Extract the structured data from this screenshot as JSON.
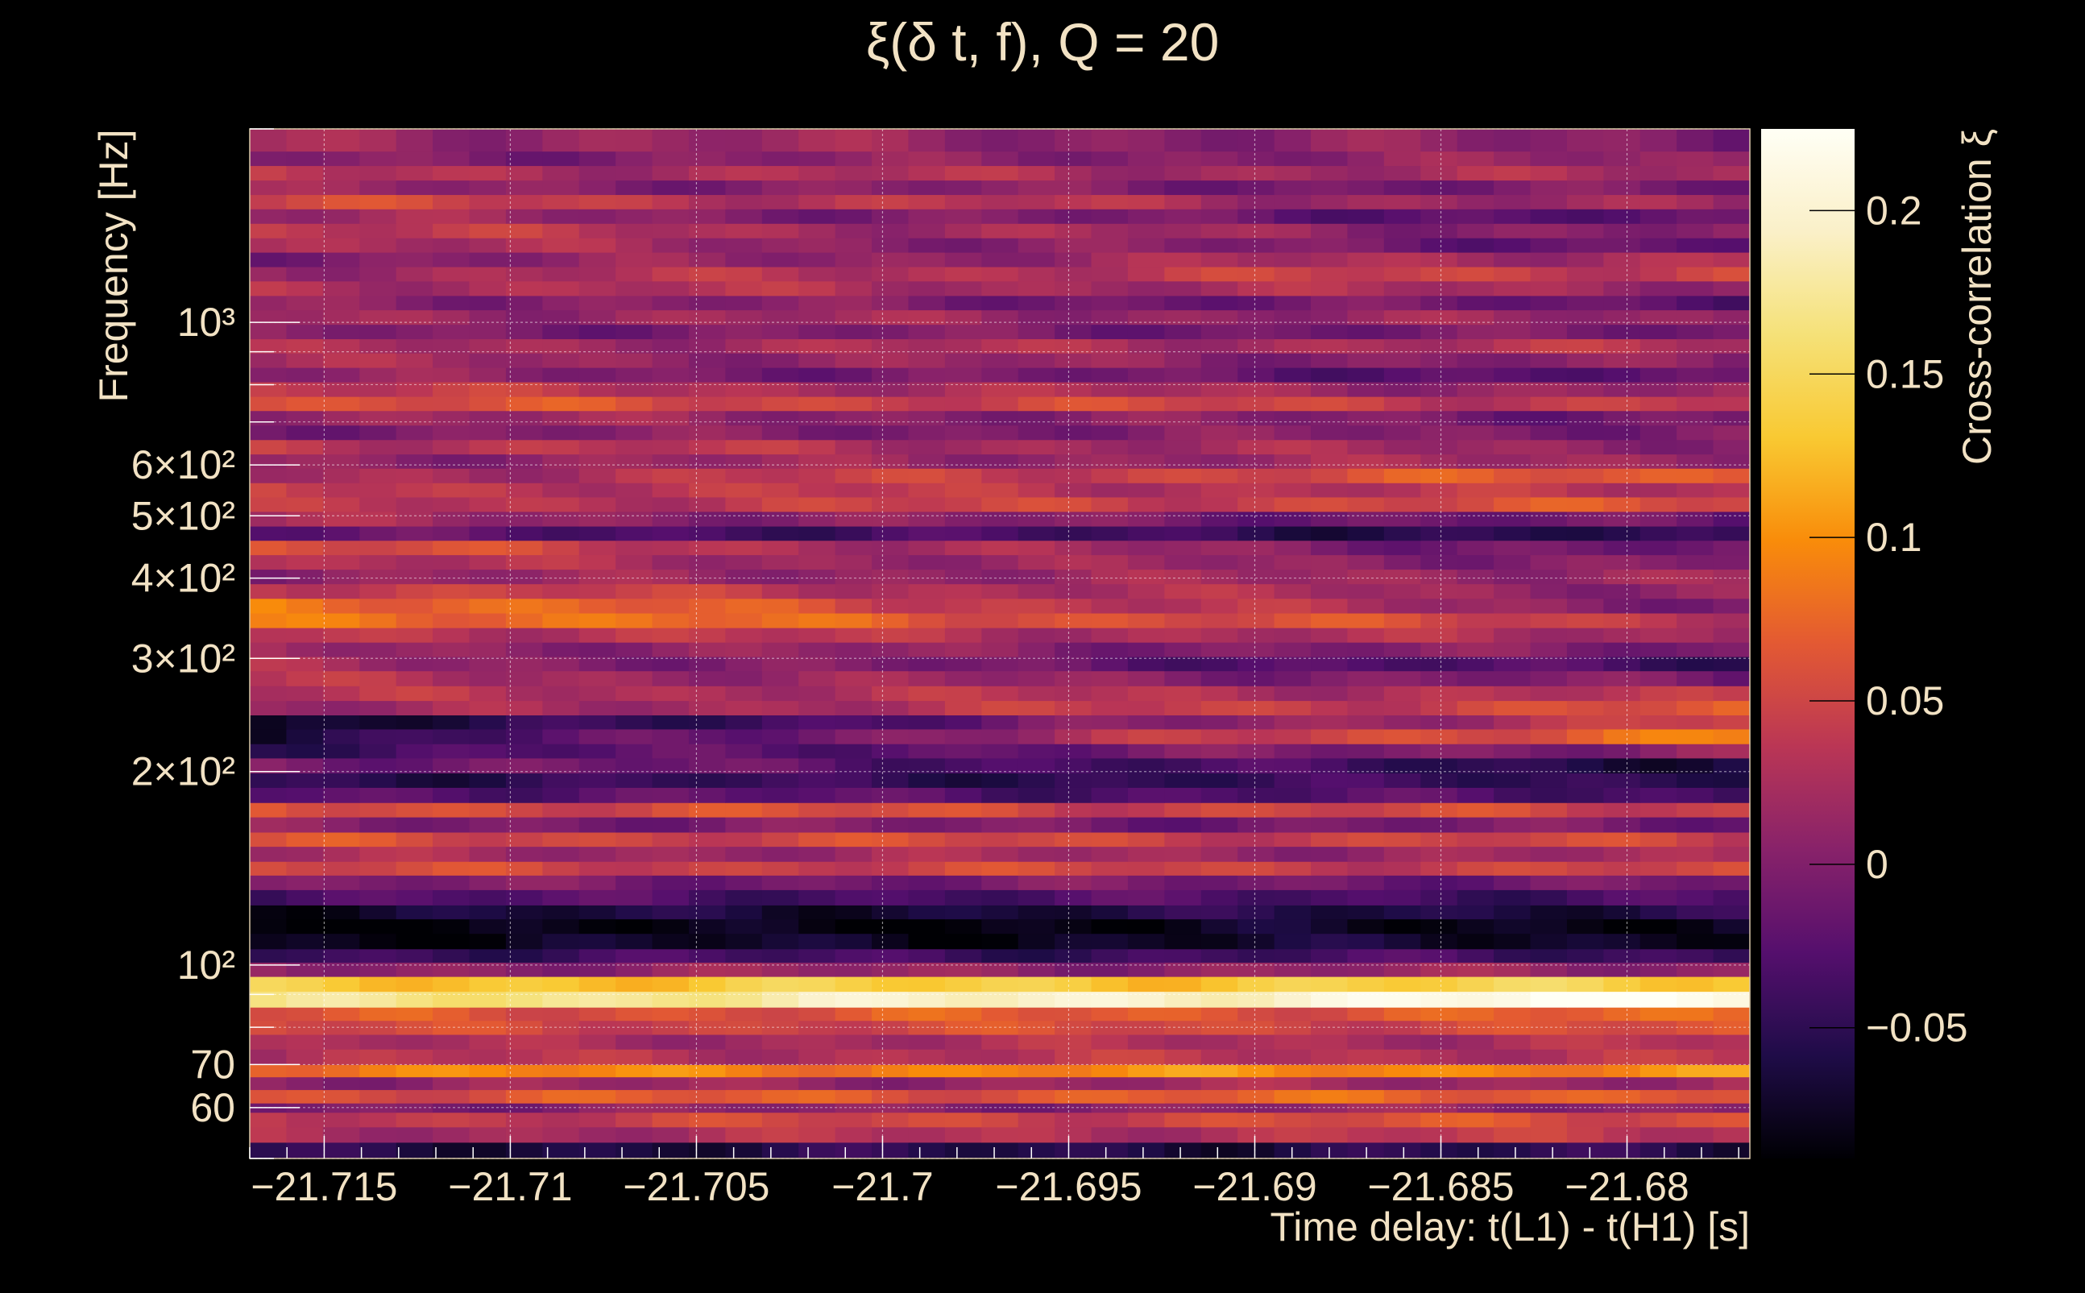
{
  "chart_data": {
    "type": "heatmap",
    "title": "ξ(δ t, f), Q = 20",
    "xlabel": "Time delay: t(L1) - t(H1) [s]",
    "ylabel": "Frequency [Hz]",
    "colorbar_label": "Cross-correlation ξ",
    "x_range": [
      -21.717,
      -21.6767
    ],
    "y_range": [
      50,
      2000
    ],
    "y_scale": "log",
    "color_range": [
      -0.09,
      0.225
    ],
    "colormap": "inferno",
    "grid": true,
    "x_ticks": [
      {
        "value": -21.715,
        "label": "−21.715"
      },
      {
        "value": -21.71,
        "label": "−21.71"
      },
      {
        "value": -21.705,
        "label": "−21.705"
      },
      {
        "value": -21.7,
        "label": "−21.7"
      },
      {
        "value": -21.695,
        "label": "−21.695"
      },
      {
        "value": -21.69,
        "label": "−21.69"
      },
      {
        "value": -21.685,
        "label": "−21.685"
      },
      {
        "value": -21.68,
        "label": "−21.68"
      }
    ],
    "y_ticks": [
      {
        "value": 1000,
        "label": "10³"
      },
      {
        "value": 600,
        "label": "6×10²"
      },
      {
        "value": 500,
        "label": "5×10²"
      },
      {
        "value": 400,
        "label": "4×10²"
      },
      {
        "value": 300,
        "label": "3×10²"
      },
      {
        "value": 200,
        "label": "2×10²"
      },
      {
        "value": 100,
        "label": "10²"
      },
      {
        "value": 70,
        "label": "70"
      },
      {
        "value": 60,
        "label": "60"
      }
    ],
    "color_ticks": [
      {
        "value": 0.2,
        "label": "0.2"
      },
      {
        "value": 0.15,
        "label": "0.15"
      },
      {
        "value": 0.1,
        "label": "0.1"
      },
      {
        "value": 0.05,
        "label": "0.05"
      },
      {
        "value": 0,
        "label": "0"
      },
      {
        "value": -0.05,
        "label": "−0.05"
      }
    ],
    "frequency_bands": [
      {
        "f_low": 50,
        "f_high": 53,
        "v_start": -0.06,
        "v_end": -0.055
      },
      {
        "f_low": 53,
        "f_high": 56,
        "v_start": 0.02,
        "v_end": 0.04
      },
      {
        "f_low": 56,
        "f_high": 59,
        "v_start": 0.04,
        "v_end": 0.06
      },
      {
        "f_low": 59,
        "f_high": 61,
        "v_start": 0.0,
        "v_end": 0.01
      },
      {
        "f_low": 61,
        "f_high": 64,
        "v_start": 0.06,
        "v_end": 0.075
      },
      {
        "f_low": 64,
        "f_high": 67,
        "v_start": 0.01,
        "v_end": 0.02
      },
      {
        "f_low": 67,
        "f_high": 70,
        "v_start": 0.09,
        "v_end": 0.1
      },
      {
        "f_low": 70,
        "f_high": 74,
        "v_start": 0.03,
        "v_end": 0.035
      },
      {
        "f_low": 74,
        "f_high": 78,
        "v_start": 0.02,
        "v_end": 0.03
      },
      {
        "f_low": 78,
        "f_high": 82,
        "v_start": 0.05,
        "v_end": 0.055
      },
      {
        "f_low": 82,
        "f_high": 86,
        "v_start": 0.06,
        "v_end": 0.07
      },
      {
        "f_low": 86,
        "f_high": 91,
        "v_start": 0.16,
        "v_end": 0.225
      },
      {
        "f_low": 91,
        "f_high": 96,
        "v_start": 0.13,
        "v_end": 0.14
      },
      {
        "f_low": 96,
        "f_high": 101,
        "v_start": 0.01,
        "v_end": 0.01
      },
      {
        "f_low": 101,
        "f_high": 106,
        "v_start": -0.04,
        "v_end": -0.04
      },
      {
        "f_low": 106,
        "f_high": 112,
        "v_start": -0.08,
        "v_end": -0.07
      },
      {
        "f_low": 112,
        "f_high": 118,
        "v_start": -0.09,
        "v_end": -0.075
      },
      {
        "f_low": 118,
        "f_high": 124,
        "v_start": -0.07,
        "v_end": -0.055
      },
      {
        "f_low": 124,
        "f_high": 131,
        "v_start": -0.03,
        "v_end": -0.035
      },
      {
        "f_low": 131,
        "f_high": 138,
        "v_start": -0.005,
        "v_end": -0.01
      },
      {
        "f_low": 138,
        "f_high": 145,
        "v_start": 0.05,
        "v_end": 0.045
      },
      {
        "f_low": 145,
        "f_high": 153,
        "v_start": 0.02,
        "v_end": 0.015
      },
      {
        "f_low": 153,
        "f_high": 161,
        "v_start": 0.055,
        "v_end": 0.045
      },
      {
        "f_low": 161,
        "f_high": 170,
        "v_start": 0.0,
        "v_end": -0.01
      },
      {
        "f_low": 170,
        "f_high": 179,
        "v_start": 0.06,
        "v_end": 0.045
      },
      {
        "f_low": 179,
        "f_high": 189,
        "v_start": -0.02,
        "v_end": -0.035
      },
      {
        "f_low": 189,
        "f_high": 199,
        "v_start": -0.05,
        "v_end": -0.045
      },
      {
        "f_low": 199,
        "f_high": 210,
        "v_start": 0.0,
        "v_end": -0.06
      },
      {
        "f_low": 210,
        "f_high": 221,
        "v_start": -0.04,
        "v_end": 0.01
      },
      {
        "f_low": 221,
        "f_high": 233,
        "v_start": -0.06,
        "v_end": 0.09
      },
      {
        "f_low": 233,
        "f_high": 245,
        "v_start": -0.08,
        "v_end": 0.05
      },
      {
        "f_low": 245,
        "f_high": 258,
        "v_start": 0.01,
        "v_end": 0.06
      },
      {
        "f_low": 258,
        "f_high": 272,
        "v_start": 0.03,
        "v_end": 0.03
      },
      {
        "f_low": 272,
        "f_high": 287,
        "v_start": 0.03,
        "v_end": -0.01
      },
      {
        "f_low": 287,
        "f_high": 302,
        "v_start": 0.02,
        "v_end": -0.045
      },
      {
        "f_low": 302,
        "f_high": 318,
        "v_start": 0.015,
        "v_end": -0.005
      },
      {
        "f_low": 318,
        "f_high": 335,
        "v_start": 0.04,
        "v_end": 0.02
      },
      {
        "f_low": 335,
        "f_high": 353,
        "v_start": 0.09,
        "v_end": 0.04
      },
      {
        "f_low": 353,
        "f_high": 372,
        "v_start": 0.09,
        "v_end": 0.0
      },
      {
        "f_low": 372,
        "f_high": 392,
        "v_start": 0.05,
        "v_end": 0.01
      },
      {
        "f_low": 392,
        "f_high": 413,
        "v_start": 0.01,
        "v_end": 0.02
      },
      {
        "f_low": 413,
        "f_high": 435,
        "v_start": 0.03,
        "v_end": 0.0
      },
      {
        "f_low": 435,
        "f_high": 458,
        "v_start": 0.06,
        "v_end": -0.02
      },
      {
        "f_low": 458,
        "f_high": 482,
        "v_start": -0.02,
        "v_end": -0.06
      },
      {
        "f_low": 482,
        "f_high": 508,
        "v_start": 0.02,
        "v_end": -0.02
      },
      {
        "f_low": 508,
        "f_high": 535,
        "v_start": 0.03,
        "v_end": 0.06
      },
      {
        "f_low": 535,
        "f_high": 563,
        "v_start": 0.04,
        "v_end": 0.03
      },
      {
        "f_low": 563,
        "f_high": 593,
        "v_start": 0.02,
        "v_end": 0.07
      },
      {
        "f_low": 593,
        "f_high": 624,
        "v_start": 0.01,
        "v_end": 0.02
      },
      {
        "f_low": 624,
        "f_high": 657,
        "v_start": 0.04,
        "v_end": 0.01
      },
      {
        "f_low": 657,
        "f_high": 692,
        "v_start": 0.0,
        "v_end": 0.0
      },
      {
        "f_low": 692,
        "f_high": 729,
        "v_start": 0.02,
        "v_end": -0.01
      },
      {
        "f_low": 729,
        "f_high": 767,
        "v_start": 0.06,
        "v_end": 0.04
      },
      {
        "f_low": 767,
        "f_high": 808,
        "v_start": 0.04,
        "v_end": 0.01
      },
      {
        "f_low": 808,
        "f_high": 851,
        "v_start": 0.01,
        "v_end": -0.03
      },
      {
        "f_low": 851,
        "f_high": 896,
        "v_start": 0.02,
        "v_end": 0.0
      },
      {
        "f_low": 896,
        "f_high": 943,
        "v_start": 0.02,
        "v_end": 0.03
      },
      {
        "f_low": 943,
        "f_high": 993,
        "v_start": 0.0,
        "v_end": -0.01
      },
      {
        "f_low": 993,
        "f_high": 1046,
        "v_start": 0.02,
        "v_end": 0.01
      },
      {
        "f_low": 1046,
        "f_high": 1101,
        "v_start": 0.01,
        "v_end": -0.02
      },
      {
        "f_low": 1101,
        "f_high": 1160,
        "v_start": 0.03,
        "v_end": 0.02
      },
      {
        "f_low": 1160,
        "f_high": 1221,
        "v_start": 0.02,
        "v_end": 0.05
      },
      {
        "f_low": 1221,
        "f_high": 1286,
        "v_start": 0.0,
        "v_end": 0.03
      },
      {
        "f_low": 1286,
        "f_high": 1354,
        "v_start": 0.03,
        "v_end": -0.02
      },
      {
        "f_low": 1354,
        "f_high": 1426,
        "v_start": 0.04,
        "v_end": 0.0
      },
      {
        "f_low": 1426,
        "f_high": 1502,
        "v_start": 0.02,
        "v_end": -0.03
      },
      {
        "f_low": 1502,
        "f_high": 1581,
        "v_start": 0.05,
        "v_end": 0.01
      },
      {
        "f_low": 1581,
        "f_high": 1665,
        "v_start": 0.01,
        "v_end": -0.01
      },
      {
        "f_low": 1665,
        "f_high": 1754,
        "v_start": 0.03,
        "v_end": 0.02
      },
      {
        "f_low": 1754,
        "f_high": 1847,
        "v_start": 0.0,
        "v_end": 0.01
      },
      {
        "f_low": 1847,
        "f_high": 2000,
        "v_start": 0.02,
        "v_end": 0.0
      }
    ]
  }
}
